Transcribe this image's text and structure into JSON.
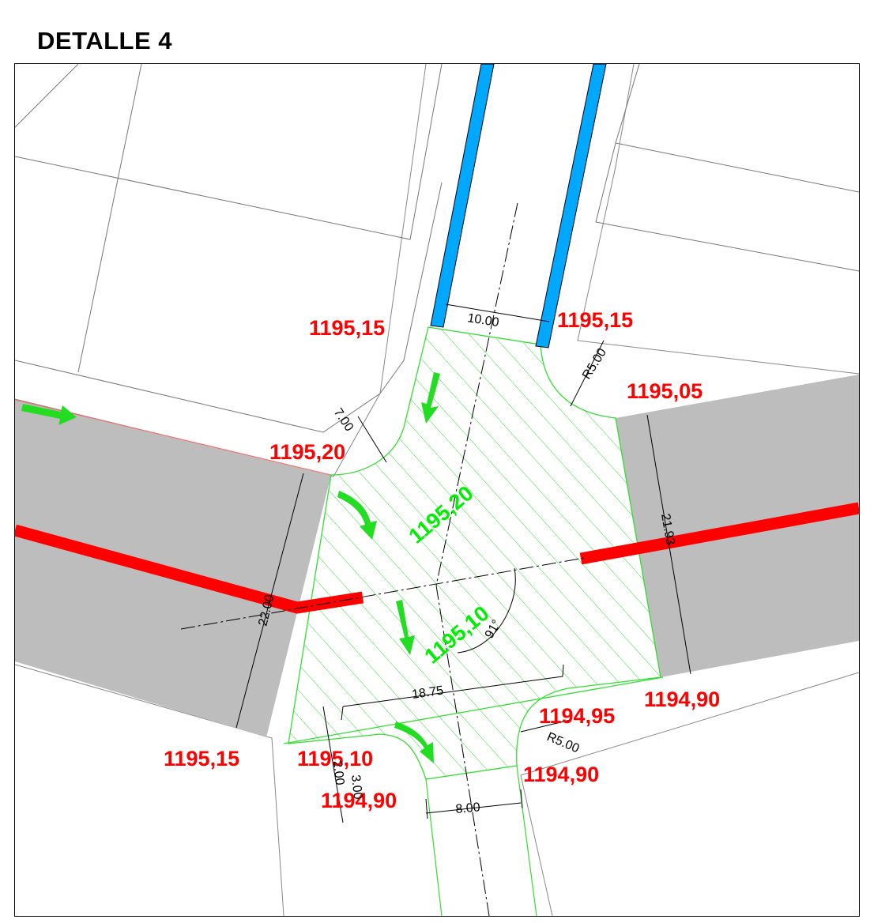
{
  "title": "DETALLE 4",
  "colors": {
    "road": "#bdbdbd",
    "pipe_red": "#ff0000",
    "pipe_blue": "#00a8ff",
    "hatch_green": "#33dd33",
    "arrow_green": "#22dd22",
    "elevation_red": "#ff0000",
    "elevation_green": "#00ee00"
  },
  "elevations_red": [
    {
      "id": "nw-top",
      "text": "1195,15"
    },
    {
      "id": "ne-top",
      "text": "1195,15"
    },
    {
      "id": "ne-corner",
      "text": "1195,05"
    },
    {
      "id": "nw-corner",
      "text": "1195,20"
    },
    {
      "id": "se-right",
      "text": "1194,90"
    },
    {
      "id": "se-inner",
      "text": "1194,95"
    },
    {
      "id": "sw-left",
      "text": "1195,15"
    },
    {
      "id": "sw-inner",
      "text": "1195,10"
    },
    {
      "id": "s-left",
      "text": "1194,90"
    },
    {
      "id": "s-right",
      "text": "1194,90"
    }
  ],
  "elevations_green": [
    {
      "id": "center-upper",
      "text": "1195,20"
    },
    {
      "id": "center-lower",
      "text": "1195,10"
    }
  ],
  "dimensions": {
    "north_width": "10.00",
    "radius_ne": "R5.00",
    "radius_nw": "7.00",
    "west_width": "22.00",
    "east_width": "21.93",
    "angle": "91°",
    "cross_width": "18.75",
    "radius_se": "R5.00",
    "south_width": "8.00",
    "south_small": "2.00",
    "south_small2": "3.00"
  }
}
